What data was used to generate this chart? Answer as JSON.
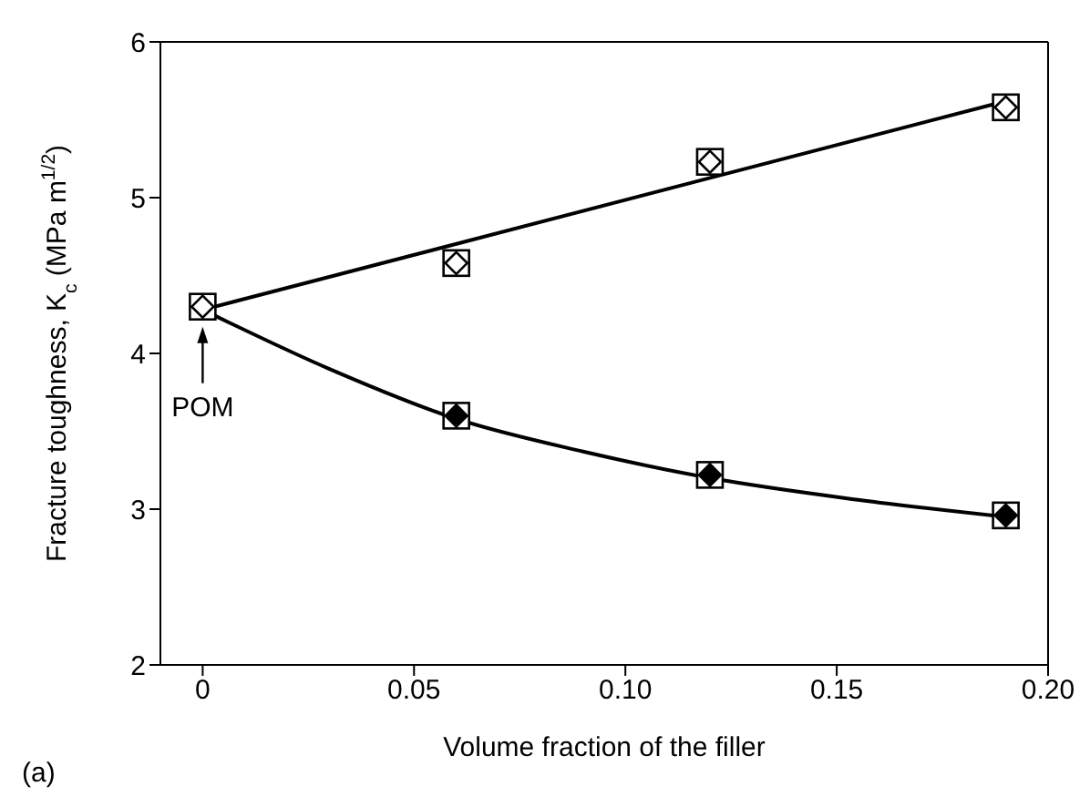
{
  "chart_data": {
    "type": "scatter",
    "xlabel": "Volume fraction of the filler",
    "ylabel": "Fracture toughness, K$_{c}$ (MPa m$^{1/2}$)",
    "xlim": [
      -0.01,
      0.2
    ],
    "xticks": [
      0,
      0.05,
      {
        "value": 0.1,
        "label": "0.10"
      },
      0.15,
      {
        "value": 0.2,
        "label": "0.20"
      }
    ],
    "ylim": [
      2,
      6
    ],
    "yticks": [
      2,
      3,
      4,
      5,
      6
    ],
    "legend": false,
    "marker": "square",
    "series": [
      {
        "color": "#ffffff",
        "x": [
          0,
          0.06,
          0.12,
          0.19
        ],
        "values": [
          4.3,
          4.58,
          5.23,
          5.58
        ]
      },
      {
        "color": "#000000",
        "x": [
          0.06,
          0.12,
          0.19
        ],
        "values": [
          3.6,
          3.22,
          2.96
        ]
      },
      {
        "type": "line",
        "color": "#000000",
        "marker": "none",
        "x": [
          0,
          0.19
        ],
        "values": [
          4.28,
          5.62
        ]
      },
      {
        "type": "line",
        "color": "#000000",
        "marker": "none",
        "x": [
          0,
          0.03,
          0.06,
          0.09,
          0.12,
          0.155,
          0.19
        ],
        "values": [
          4.28,
          3.9,
          3.58,
          3.37,
          3.2,
          3.06,
          2.95
        ]
      }
    ],
    "annotations": [
      "POM",
      "(a)"
    ]
  }
}
